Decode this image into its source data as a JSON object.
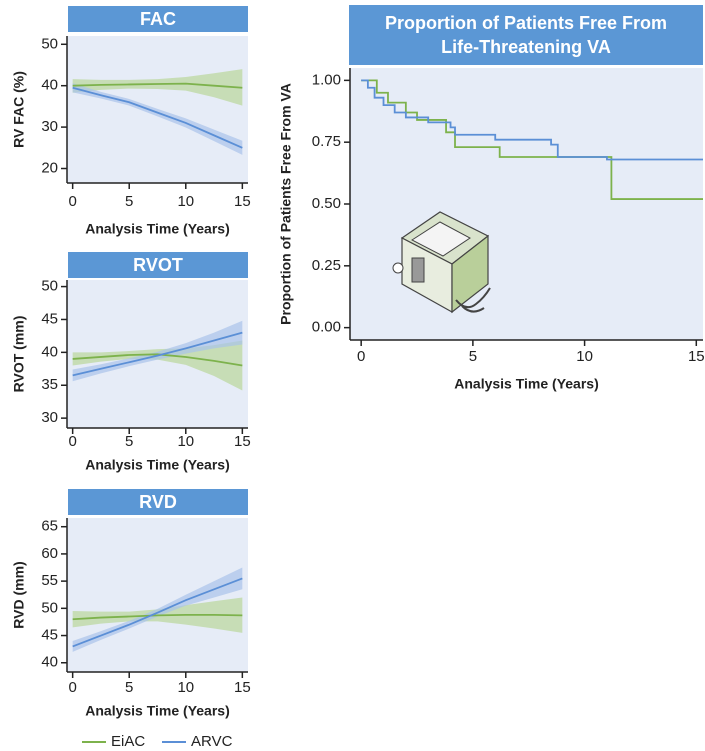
{
  "chart_data": [
    {
      "type": "line",
      "title": "FAC",
      "xlabel": "Analysis Time (Years)",
      "ylabel": "RV FAC (%)",
      "x": [
        0,
        2.5,
        5,
        7.5,
        10,
        12.5,
        15
      ],
      "xlim": [
        -0.5,
        15.5
      ],
      "xticks": [
        0,
        5,
        10,
        15
      ],
      "ylim": [
        16.5,
        52
      ],
      "yticks": [
        20,
        30,
        40,
        50
      ],
      "series": [
        {
          "name": "EiAC",
          "color": "#7db24c",
          "band_color": "#b9d79a",
          "values": [
            40,
            40.2,
            40.3,
            40.4,
            40.5,
            40,
            39.5
          ],
          "lower": [
            38.3,
            39,
            39.3,
            39.2,
            38.8,
            37.2,
            35.2
          ],
          "upper": [
            41.6,
            41.4,
            41.4,
            41.6,
            42.1,
            43,
            44
          ]
        },
        {
          "name": "ARVC",
          "color": "#5b8fd6",
          "band_color": "#a9c3ea",
          "values": [
            39.5,
            37.7,
            36,
            33.5,
            31,
            28,
            25
          ],
          "lower": [
            38.4,
            36.9,
            35.2,
            32.6,
            29.9,
            26.6,
            23.3
          ],
          "upper": [
            40.6,
            38.5,
            36.8,
            34.4,
            32.1,
            29.4,
            26.7
          ]
        }
      ]
    },
    {
      "type": "line",
      "title": "RVOT",
      "xlabel": "Analysis Time (Years)",
      "ylabel": "RVOT (mm)",
      "x": [
        0,
        2.5,
        5,
        7.5,
        10,
        12.5,
        15
      ],
      "xlim": [
        -0.5,
        15.5
      ],
      "xticks": [
        0,
        5,
        10,
        15
      ],
      "ylim": [
        28.5,
        51
      ],
      "yticks": [
        30,
        35,
        40,
        45,
        50
      ],
      "series": [
        {
          "name": "EiAC",
          "color": "#7db24c",
          "band_color": "#b9d79a",
          "values": [
            39,
            39.3,
            39.6,
            39.7,
            39.3,
            38.7,
            38
          ],
          "lower": [
            38,
            38.6,
            39,
            38.9,
            38.1,
            36.4,
            34.2
          ],
          "upper": [
            40,
            40,
            40.2,
            40.5,
            40.6,
            41.1,
            41.8
          ]
        },
        {
          "name": "ARVC",
          "color": "#5b8fd6",
          "band_color": "#a9c3ea",
          "values": [
            36.5,
            37.5,
            38.5,
            39.5,
            40.6,
            41.8,
            43
          ],
          "lower": [
            35.6,
            36.8,
            37.9,
            38.9,
            39.8,
            40.6,
            41.2
          ],
          "upper": [
            37.4,
            38.2,
            39.1,
            40.1,
            41.4,
            43,
            44.8
          ]
        }
      ]
    },
    {
      "type": "line",
      "title": "RVD",
      "xlabel": "Analysis Time (Years)",
      "ylabel": "RVD (mm)",
      "x": [
        0,
        2.5,
        5,
        7.5,
        10,
        12.5,
        15
      ],
      "xlim": [
        -0.5,
        15.5
      ],
      "xticks": [
        0,
        5,
        10,
        15
      ],
      "ylim": [
        38.3,
        66.6
      ],
      "yticks": [
        40,
        45,
        50,
        55,
        60,
        65
      ],
      "series": [
        {
          "name": "EiAC",
          "color": "#7db24c",
          "band_color": "#b9d79a",
          "values": [
            48,
            48.3,
            48.5,
            48.7,
            48.8,
            48.8,
            48.7
          ],
          "lower": [
            46.5,
            47.2,
            47.6,
            47.6,
            47,
            46.3,
            45.5
          ],
          "upper": [
            49.5,
            49.4,
            49.4,
            49.8,
            50.6,
            51.3,
            52
          ]
        },
        {
          "name": "ARVC",
          "color": "#5b8fd6",
          "band_color": "#a9c3ea",
          "values": [
            43,
            45,
            47,
            49.2,
            51.5,
            53.5,
            55.5
          ],
          "lower": [
            42,
            44.2,
            46.3,
            48.5,
            50.5,
            52,
            53.5
          ],
          "upper": [
            44,
            45.8,
            47.7,
            49.9,
            52.5,
            55,
            57.5
          ]
        }
      ]
    },
    {
      "type": "step",
      "title": "Proportion of Patients Free From Life-Threatening VA",
      "xlabel": "Analysis Time (Years)",
      "ylabel": "Proportion of Patients Free From VA",
      "xlim": [
        -0.5,
        15.3
      ],
      "xticks": [
        0,
        5,
        10,
        15
      ],
      "ylim": [
        -0.05,
        1.05
      ],
      "yticks": [
        {
          "value": 0,
          "label": "0.00"
        },
        {
          "value": 0.25,
          "label": "0.25"
        },
        {
          "value": 0.5,
          "label": "0.50"
        },
        {
          "value": 0.75,
          "label": "0.75"
        },
        {
          "value": 1,
          "label": "1.00"
        }
      ],
      "series": [
        {
          "name": "EiAC",
          "color": "#7db24c",
          "x": [
            0,
            0.7,
            1.2,
            2,
            2.5,
            3.8,
            4.2,
            6.2,
            11.2,
            15.3
          ],
          "values": [
            1,
            0.95,
            0.91,
            0.87,
            0.84,
            0.79,
            0.73,
            0.69,
            0.52,
            0.52
          ]
        },
        {
          "name": "ARVC",
          "color": "#5b8fd6",
          "x": [
            0,
            0.3,
            0.6,
            1,
            1.5,
            2,
            3,
            4,
            4.2,
            6,
            8.5,
            8.8,
            11,
            15.3
          ],
          "values": [
            1,
            0.97,
            0.93,
            0.9,
            0.87,
            0.85,
            0.83,
            0.81,
            0.78,
            0.76,
            0.74,
            0.69,
            0.68,
            0.68
          ]
        }
      ]
    }
  ]
}
